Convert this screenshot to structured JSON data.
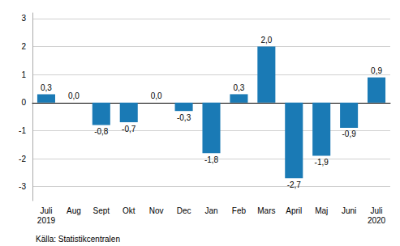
{
  "chart_data": {
    "type": "bar",
    "categories": [
      "Juli\n2019",
      "Aug",
      "Sept",
      "Okt",
      "Nov",
      "Dec",
      "Jan",
      "Feb",
      "Mars",
      "April",
      "Maj",
      "Juni",
      "Juli\n2020"
    ],
    "values": [
      0.3,
      0.0,
      -0.8,
      -0.7,
      0.0,
      -0.3,
      -1.8,
      0.3,
      2.0,
      -2.7,
      -1.9,
      -0.9,
      0.9
    ],
    "value_labels": [
      "0,3",
      "0,0",
      "-0,8",
      "-0,7",
      "0,0",
      "-0,3",
      "-1,8",
      "0,3",
      "2,0",
      "-2,7",
      "-1,9",
      "-0,9",
      "0,9"
    ],
    "color": "#1a7ab5",
    "ylim": [
      -3.5,
      3.2
    ],
    "yticks": [
      -3,
      -2,
      -1,
      0,
      1,
      2,
      3
    ],
    "grid": true,
    "data_labels": true,
    "annotations": [
      "Källa: Statistikcentralen"
    ]
  }
}
